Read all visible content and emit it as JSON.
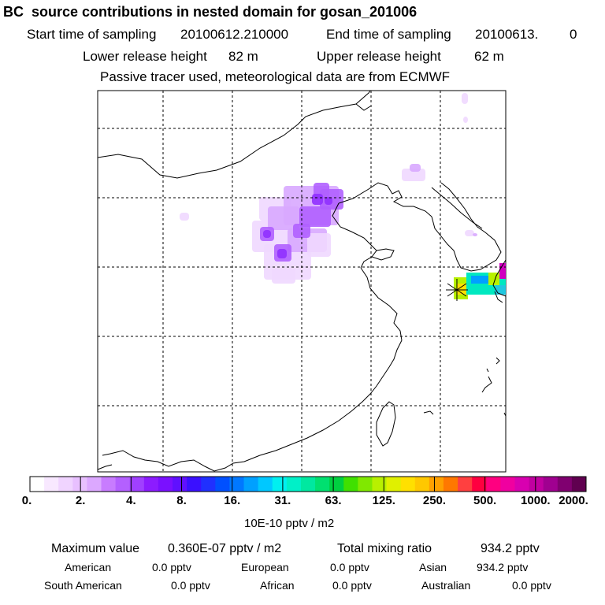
{
  "title": "BC  source contributions in nested domain for gosan_201006",
  "sampling": {
    "start_label": "Start time of sampling",
    "start_value": "20100612.210000",
    "end_label": "End time of sampling",
    "end_value": "20100613.",
    "end_suffix": "0"
  },
  "release": {
    "lower_label": "Lower release height",
    "lower_value": "82 m",
    "upper_label": "Upper release height",
    "upper_value": "62 m"
  },
  "tracer_note": "Passive tracer used, meteorological data are from ECMWF",
  "colorbar": {
    "labels": [
      "0.",
      "2.",
      "4.",
      "8.",
      "16.",
      "31.",
      "63.",
      "125.",
      "250.",
      "500.",
      "1000.",
      "2000."
    ],
    "unit": "10E-10 pptv / m2",
    "colors": [
      "#ffffff",
      "#f8e8ff",
      "#f0d4ff",
      "#e8c0ff",
      "#dca8ff",
      "#c87cff",
      "#b460ff",
      "#a040ff",
      "#8c1cff",
      "#7a10ff",
      "#6010ff",
      "#3a10ff",
      "#2030ff",
      "#0050ff",
      "#0078ff",
      "#00a0ff",
      "#00c8ff",
      "#00f0f0",
      "#00f0c8",
      "#00e8a0",
      "#00e070",
      "#00d040",
      "#40e000",
      "#80e800",
      "#b8f000",
      "#e0f000",
      "#ffe000",
      "#ffc800",
      "#ffa000",
      "#ff7800",
      "#ff4040",
      "#ff0040",
      "#ff0080",
      "#f000a0",
      "#d800b0",
      "#c000a0",
      "#a00090",
      "#800070",
      "#600050"
    ]
  },
  "summary": {
    "max_label": "Maximum value",
    "max_value": "0.360E-07 pptv / m2",
    "total_label": "Total mixing ratio",
    "total_value": "934.2 pptv"
  },
  "regions": [
    {
      "name": "American",
      "value": "0.0 pptv"
    },
    {
      "name": "European",
      "value": "0.0 pptv"
    },
    {
      "name": "Asian",
      "value": "934.2 pptv"
    },
    {
      "name": "South American",
      "value": "0.0 pptv"
    },
    {
      "name": "African",
      "value": "0.0 pptv"
    },
    {
      "name": "Australian",
      "value": "0.0 pptv"
    }
  ],
  "plume_colors": {
    "light": "#f0d8ff",
    "mid": "#d8a8ff",
    "strong": "#b060ff",
    "core": "#9030ff"
  },
  "receptor_colors": {
    "outer": "#b8f000",
    "ring": "#00e8c0",
    "inner": "#ffe000",
    "edge": "#d000c0"
  }
}
